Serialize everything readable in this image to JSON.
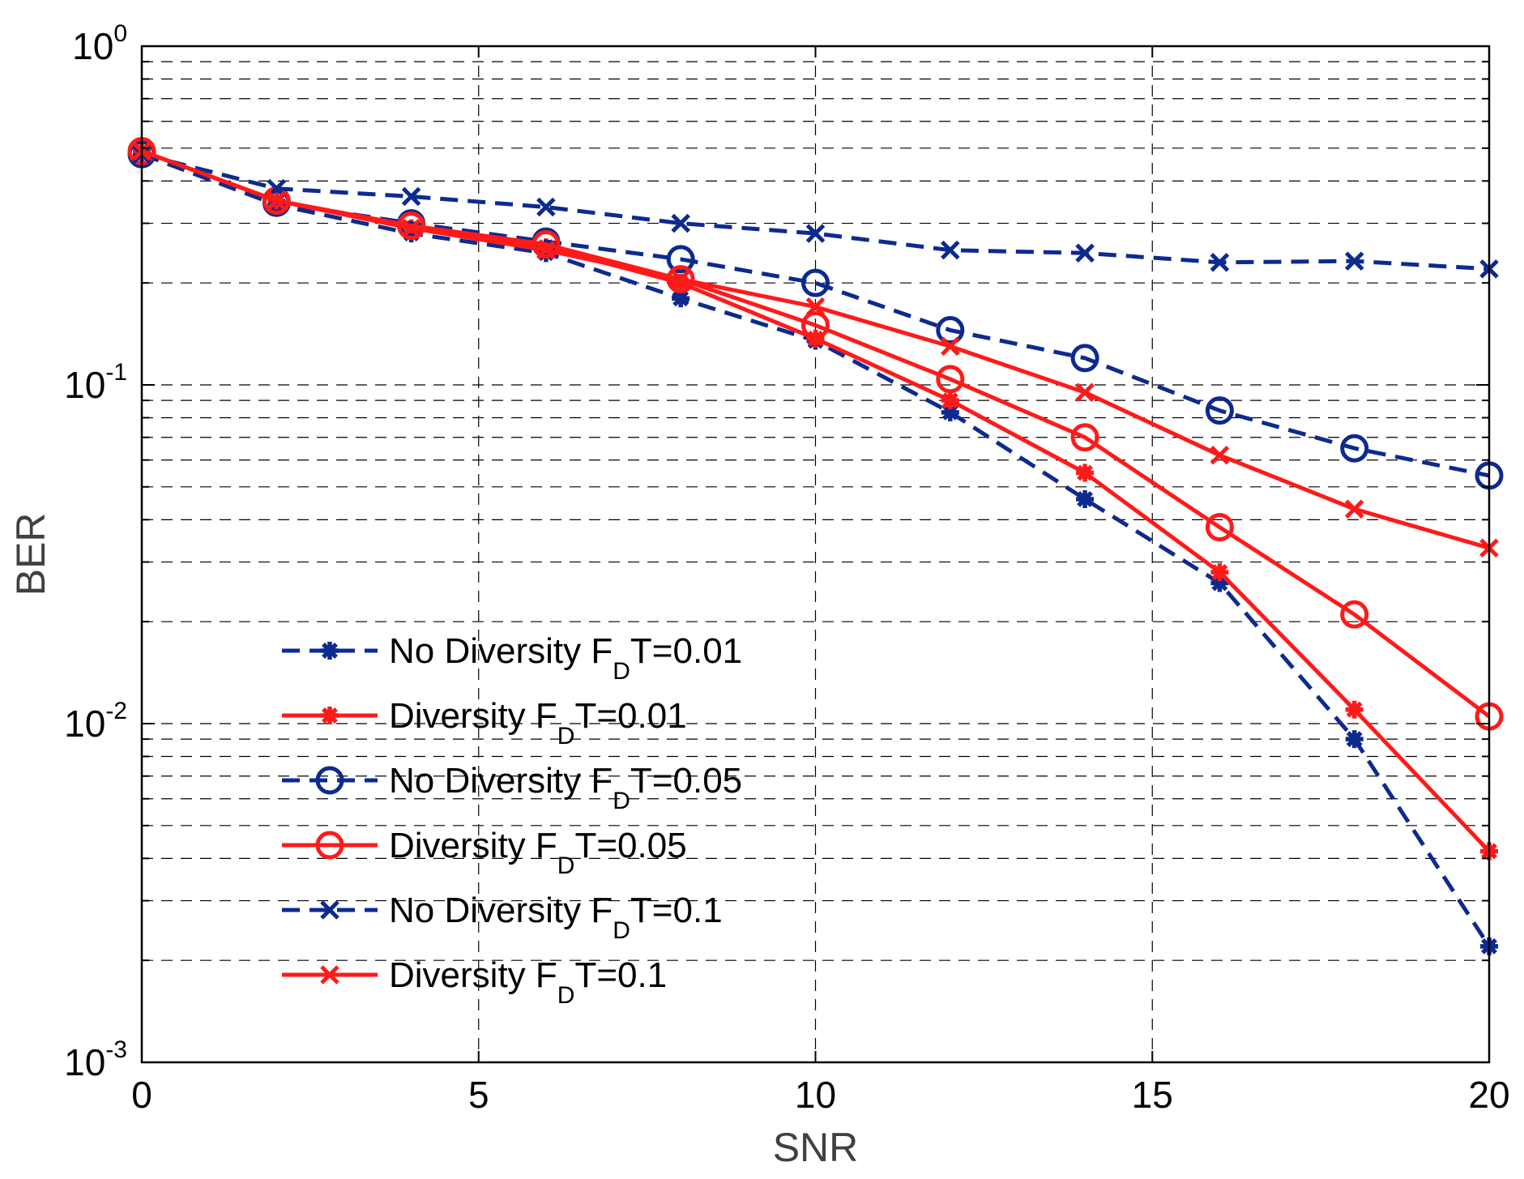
{
  "chart_data": {
    "type": "line",
    "title": "",
    "xlabel": "SNR",
    "ylabel": "BER",
    "xlim": [
      0,
      20
    ],
    "ylim": [
      0.001,
      1
    ],
    "yscale": "log",
    "grid": true,
    "legend_position": "bottom-left",
    "x_ticks": [
      {
        "value": 0,
        "label": "0"
      },
      {
        "value": 5,
        "label": "5"
      },
      {
        "value": 10,
        "label": "10"
      },
      {
        "value": 15,
        "label": "15"
      },
      {
        "value": 20,
        "label": "20"
      }
    ],
    "y_ticks": [
      {
        "value": 1,
        "base": "10",
        "exp": "0"
      },
      {
        "value": 0.1,
        "base": "10",
        "exp": "-1"
      },
      {
        "value": 0.01,
        "base": "10",
        "exp": "-2"
      },
      {
        "value": 0.001,
        "base": "10",
        "exp": "-3"
      }
    ],
    "x": [
      0,
      2,
      4,
      6,
      8,
      10,
      12,
      14,
      16,
      18,
      20
    ],
    "series": [
      {
        "name": "No Diversity FDT=0.01",
        "label_main": "No Diversity F",
        "label_sub": "D",
        "label_tail": "T=0.01",
        "color": "#0d2a8f",
        "dash": "dashed",
        "marker": "asterisk",
        "values": [
          0.48,
          0.34,
          0.28,
          0.245,
          0.18,
          0.135,
          0.083,
          0.046,
          0.026,
          0.009,
          0.0022
        ]
      },
      {
        "name": "Diversity FDT=0.01",
        "label_main": "Diversity F",
        "label_sub": "D",
        "label_tail": "T=0.01",
        "color": "#ff1a1a",
        "dash": "solid",
        "marker": "asterisk",
        "values": [
          0.49,
          0.35,
          0.29,
          0.255,
          0.2,
          0.137,
          0.09,
          0.055,
          0.028,
          0.011,
          0.0042
        ]
      },
      {
        "name": "No Diversity FDT=0.05",
        "label_main": "No Diversity F",
        "label_sub": "D",
        "label_tail": "T=0.05",
        "color": "#0d2a8f",
        "dash": "dashed",
        "marker": "circle",
        "values": [
          0.48,
          0.345,
          0.3,
          0.265,
          0.235,
          0.2,
          0.145,
          0.12,
          0.084,
          0.065,
          0.054
        ]
      },
      {
        "name": "Diversity FDT=0.05",
        "label_main": "Diversity F",
        "label_sub": "D",
        "label_tail": "T=0.05",
        "color": "#ff1a1a",
        "dash": "solid",
        "marker": "circle",
        "values": [
          0.49,
          0.35,
          0.295,
          0.26,
          0.205,
          0.15,
          0.104,
          0.07,
          0.038,
          0.021,
          0.0105
        ]
      },
      {
        "name": "No Diversity FDT=0.1",
        "label_main": "No Diversity F",
        "label_sub": "D",
        "label_tail": "T=0.1",
        "color": "#0d2a8f",
        "dash": "dashed",
        "marker": "cross",
        "values": [
          0.48,
          0.38,
          0.36,
          0.335,
          0.3,
          0.28,
          0.25,
          0.245,
          0.23,
          0.232,
          0.22
        ]
      },
      {
        "name": "Diversity FDT=0.1",
        "label_main": "Diversity F",
        "label_sub": "D",
        "label_tail": "T=0.1",
        "color": "#ff1a1a",
        "dash": "solid",
        "marker": "cross",
        "values": [
          0.49,
          0.35,
          0.29,
          0.25,
          0.205,
          0.17,
          0.13,
          0.095,
          0.062,
          0.043,
          0.033
        ]
      }
    ]
  }
}
